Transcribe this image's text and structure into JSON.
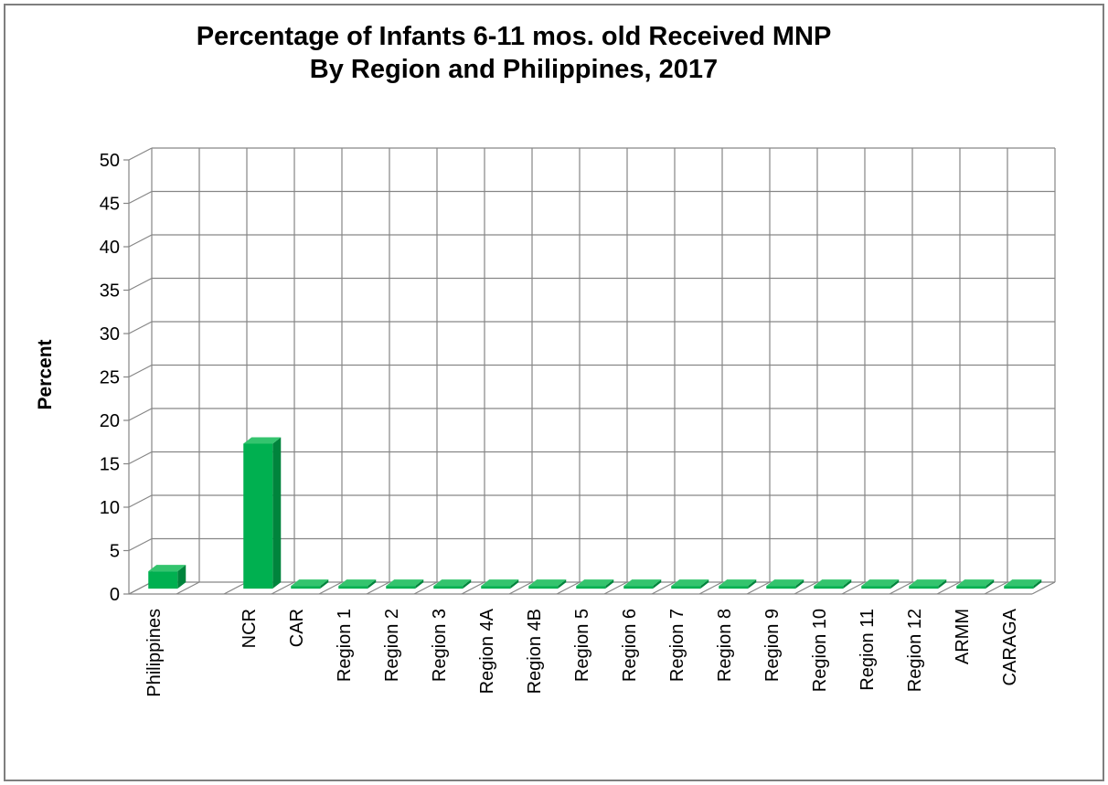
{
  "chart_data": {
    "type": "bar",
    "title": "Percentage of Infants  6-11 mos. old Received MNP",
    "subtitle": "By Region and Philippines, 2017",
    "xlabel": "",
    "ylabel": "Percent",
    "ylim": [
      0,
      50
    ],
    "yticks": [
      0,
      5,
      10,
      15,
      20,
      25,
      30,
      35,
      40,
      45,
      50
    ],
    "grid": true,
    "legend": "none",
    "categories": [
      "Philippines",
      "",
      "NCR",
      "CAR",
      "Region 1",
      "Region 2",
      "Region 3",
      "Region 4A",
      "Region 4B",
      "Region 5",
      "Region 6",
      "Region 7",
      "Region 8",
      "Region 9",
      "Region 10",
      "Region 11",
      "Region 12",
      "ARMM",
      "CARAGA"
    ],
    "values": [
      2.0,
      null,
      16.7,
      0,
      0,
      0,
      0,
      0,
      0,
      0,
      0,
      0,
      0,
      0,
      0,
      0,
      0,
      0,
      0
    ],
    "colors": {
      "bar_front": "#00b050",
      "bar_side": "#00843c",
      "bar_top": "#34c46e",
      "grid": "#868686"
    }
  }
}
